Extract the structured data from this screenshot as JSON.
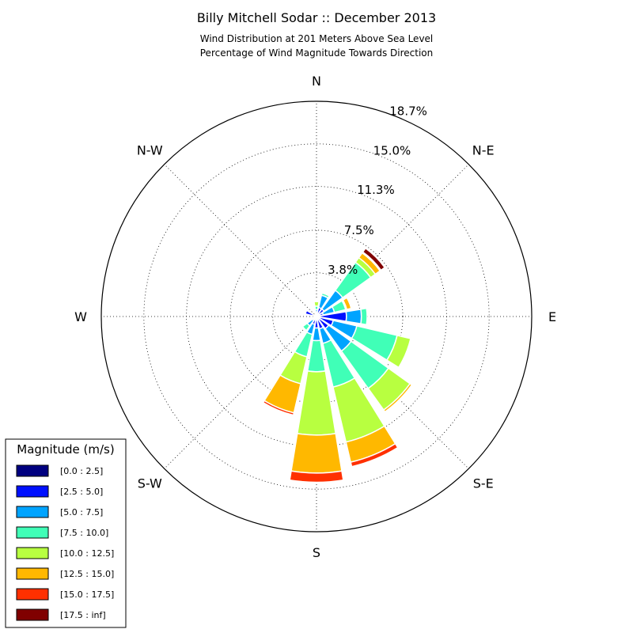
{
  "chart_data": {
    "type": "windrose",
    "title": "Billy Mitchell Sodar :: December 2013",
    "subtitle_lines": [
      "Wind Distribution at 201 Meters Above Sea Level",
      "Percentage of Wind Magnitude Towards Direction"
    ],
    "directions": [
      "N",
      "N-E",
      "E",
      "S-E",
      "S",
      "S-W",
      "W",
      "N-W"
    ],
    "ring_labels": [
      "3.8%",
      "7.5%",
      "11.3%",
      "15.0%",
      "18.7%"
    ],
    "r_max": 18.7,
    "legend": {
      "title": "Magnitude (m/s)",
      "entries": [
        {
          "label": "[0.0 : 2.5]",
          "color": "#000080"
        },
        {
          "label": "[2.5 : 5.0]",
          "color": "#0010ff"
        },
        {
          "label": "[5.0 : 7.5]",
          "color": "#00a4ff"
        },
        {
          "label": "[7.5 : 10.0]",
          "color": "#40ffb7"
        },
        {
          "label": "[10.0 : 12.5]",
          "color": "#b8ff40"
        },
        {
          "label": "[12.5 : 15.0]",
          "color": "#ffb800"
        },
        {
          "label": "[15.0 : 17.5]",
          "color": "#ff3000"
        },
        {
          "label": "[17.5 : inf]",
          "color": "#800000"
        }
      ]
    },
    "sectors": [
      {
        "direction_deg": 0.0,
        "cumulative": [
          0.2,
          0.4,
          0.6,
          0.9,
          1.3,
          1.4,
          1.4,
          1.4
        ]
      },
      {
        "direction_deg": 22.5,
        "cumulative": [
          0.2,
          0.8,
          1.9,
          2.1,
          2.2,
          2.2,
          2.2,
          2.2
        ]
      },
      {
        "direction_deg": 45.0,
        "cumulative": [
          0.2,
          0.8,
          2.8,
          5.8,
          6.3,
          6.8,
          6.9,
          7.3
        ]
      },
      {
        "direction_deg": 67.5,
        "cumulative": [
          0.2,
          0.6,
          1.6,
          2.6,
          2.7,
          3.1,
          3.2,
          3.3
        ]
      },
      {
        "direction_deg": 90.0,
        "cumulative": [
          0.2,
          2.6,
          3.9,
          4.4,
          4.4,
          4.4,
          4.4,
          4.4
        ]
      },
      {
        "direction_deg": 112.5,
        "cumulative": [
          0.2,
          1.5,
          3.6,
          7.2,
          8.4,
          8.4,
          8.4,
          8.4
        ]
      },
      {
        "direction_deg": 135.0,
        "cumulative": [
          0.2,
          1.3,
          3.7,
          7.7,
          10.0,
          10.2,
          10.2,
          10.2
        ]
      },
      {
        "direction_deg": 157.5,
        "cumulative": [
          0.2,
          1.1,
          2.4,
          6.3,
          11.2,
          13.0,
          13.4,
          13.4
        ]
      },
      {
        "direction_deg": 180.0,
        "cumulative": [
          0.2,
          1.0,
          2.1,
          4.8,
          10.3,
          13.6,
          14.4,
          14.4
        ]
      },
      {
        "direction_deg": 202.5,
        "cumulative": [
          0.2,
          0.7,
          1.6,
          3.6,
          6.0,
          8.6,
          8.8,
          8.8
        ]
      },
      {
        "direction_deg": 225.0,
        "cumulative": [
          0.2,
          0.4,
          1.0,
          1.5,
          1.6,
          1.6,
          1.6,
          1.6
        ]
      },
      {
        "direction_deg": 247.5,
        "cumulative": [
          0.2,
          0.3,
          0.4,
          0.5,
          0.5,
          0.5,
          0.5,
          0.5
        ]
      },
      {
        "direction_deg": 270.0,
        "cumulative": [
          0.1,
          0.1,
          0.1,
          0.1,
          0.1,
          0.1,
          0.1,
          0.1
        ]
      },
      {
        "direction_deg": 292.5,
        "cumulative": [
          0.2,
          1.0,
          1.1,
          1.1,
          1.1,
          1.1,
          1.1,
          1.1
        ]
      },
      {
        "direction_deg": 315.0,
        "cumulative": [
          0.1,
          0.1,
          0.1,
          0.1,
          0.1,
          0.1,
          0.1,
          0.1
        ]
      },
      {
        "direction_deg": 337.5,
        "cumulative": [
          0.1,
          0.1,
          0.1,
          0.1,
          0.1,
          0.1,
          0.1,
          0.1
        ]
      }
    ]
  }
}
